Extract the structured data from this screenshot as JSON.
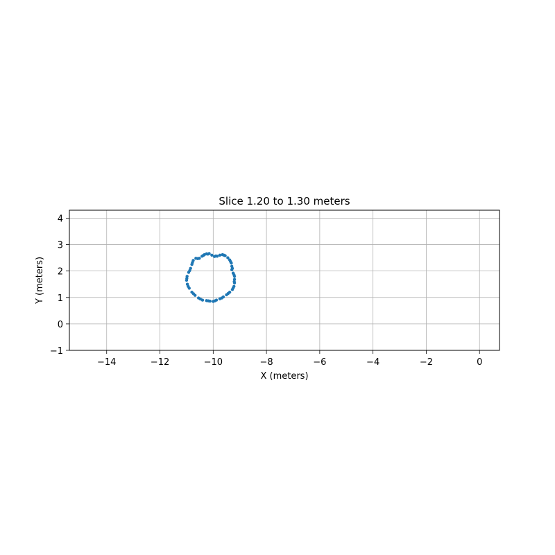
{
  "chart_data": {
    "type": "scatter",
    "title": "Slice 1.20 to 1.30 meters",
    "xlabel": "X (meters)",
    "ylabel": "Y (meters)",
    "xlim": [
      -15.4,
      0.75
    ],
    "ylim": [
      -1.0,
      4.3
    ],
    "xticks": [
      -14,
      -12,
      -10,
      -8,
      -6,
      -4,
      -2,
      0
    ],
    "xtick_labels": [
      "−14",
      "−12",
      "−10",
      "−8",
      "−6",
      "−4",
      "−2",
      "0"
    ],
    "yticks": [
      -1,
      0,
      1,
      2,
      3,
      4
    ],
    "ytick_labels": [
      "−1",
      "0",
      "1",
      "2",
      "3",
      "4"
    ],
    "grid": true,
    "point_color": "#1f77b4",
    "series": [
      {
        "values": [
          [
            -10.25,
            2.65
          ],
          [
            -10.15,
            2.66
          ],
          [
            -10.05,
            2.6
          ],
          [
            -9.95,
            2.55
          ],
          [
            -9.85,
            2.56
          ],
          [
            -9.75,
            2.6
          ],
          [
            -9.65,
            2.62
          ],
          [
            -9.55,
            2.58
          ],
          [
            -9.45,
            2.5
          ],
          [
            -9.38,
            2.42
          ],
          [
            -9.32,
            2.3
          ],
          [
            -9.3,
            2.18
          ],
          [
            -9.3,
            2.05
          ],
          [
            -9.25,
            1.92
          ],
          [
            -9.2,
            1.8
          ],
          [
            -9.2,
            1.68
          ],
          [
            -9.2,
            1.55
          ],
          [
            -9.22,
            1.42
          ],
          [
            -9.28,
            1.3
          ],
          [
            -9.38,
            1.2
          ],
          [
            -9.5,
            1.1
          ],
          [
            -9.62,
            1.02
          ],
          [
            -9.75,
            0.95
          ],
          [
            -9.88,
            0.9
          ],
          [
            -10.0,
            0.85
          ],
          [
            -10.12,
            0.86
          ],
          [
            -10.25,
            0.88
          ],
          [
            -10.4,
            0.9
          ],
          [
            -10.55,
            0.98
          ],
          [
            -10.68,
            1.08
          ],
          [
            -10.8,
            1.2
          ],
          [
            -10.9,
            1.35
          ],
          [
            -10.97,
            1.5
          ],
          [
            -11.0,
            1.65
          ],
          [
            -10.98,
            1.8
          ],
          [
            -10.92,
            1.95
          ],
          [
            -10.85,
            2.1
          ],
          [
            -10.8,
            2.25
          ],
          [
            -10.75,
            2.4
          ],
          [
            -10.65,
            2.48
          ],
          [
            -10.52,
            2.48
          ],
          [
            -10.42,
            2.56
          ],
          [
            -10.33,
            2.62
          ],
          [
            -10.2,
            2.64
          ],
          [
            -9.9,
            2.57
          ],
          [
            -9.6,
            2.6
          ],
          [
            -9.35,
            2.36
          ],
          [
            -9.28,
            2.1
          ],
          [
            -9.22,
            1.86
          ],
          [
            -9.21,
            1.6
          ],
          [
            -9.25,
            1.36
          ],
          [
            -9.44,
            1.15
          ],
          [
            -9.68,
            0.98
          ],
          [
            -9.94,
            0.87
          ],
          [
            -10.18,
            0.87
          ],
          [
            -10.48,
            0.94
          ],
          [
            -10.74,
            1.14
          ],
          [
            -10.94,
            1.42
          ],
          [
            -10.99,
            1.72
          ],
          [
            -10.88,
            2.02
          ],
          [
            -10.78,
            2.32
          ],
          [
            -10.58,
            2.47
          ],
          [
            -10.37,
            2.59
          ]
        ]
      }
    ]
  }
}
